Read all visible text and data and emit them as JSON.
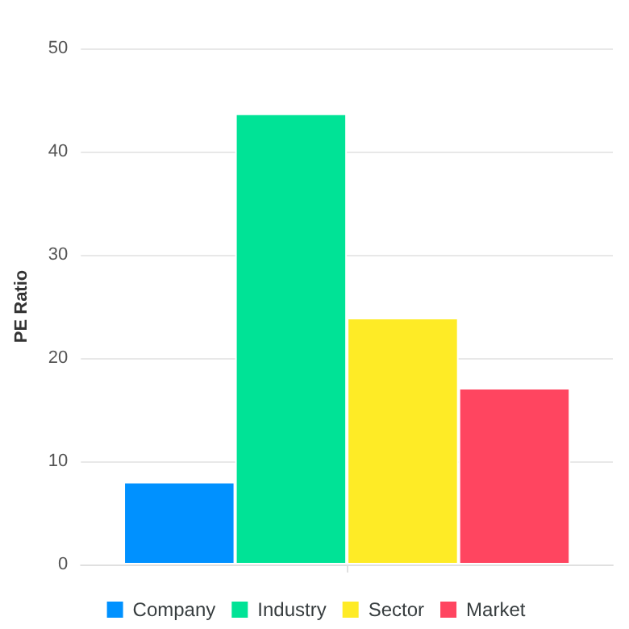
{
  "chart_data": {
    "type": "bar",
    "ylabel": "PE Ratio",
    "categories": [
      null
    ],
    "series": [
      {
        "name": "Company",
        "color": "#0091ff",
        "values": [
          8
        ]
      },
      {
        "name": "Industry",
        "color": "#00e396",
        "values": [
          43.7
        ]
      },
      {
        "name": "Sector",
        "color": "#feeb26",
        "values": [
          23.9
        ]
      },
      {
        "name": "Market",
        "color": "#ff4560",
        "values": [
          17.1
        ]
      }
    ],
    "ylim": [
      0,
      50
    ],
    "yticks": [
      0,
      10,
      20,
      30,
      40,
      50
    ],
    "grid": "y",
    "legend": "bottom"
  }
}
